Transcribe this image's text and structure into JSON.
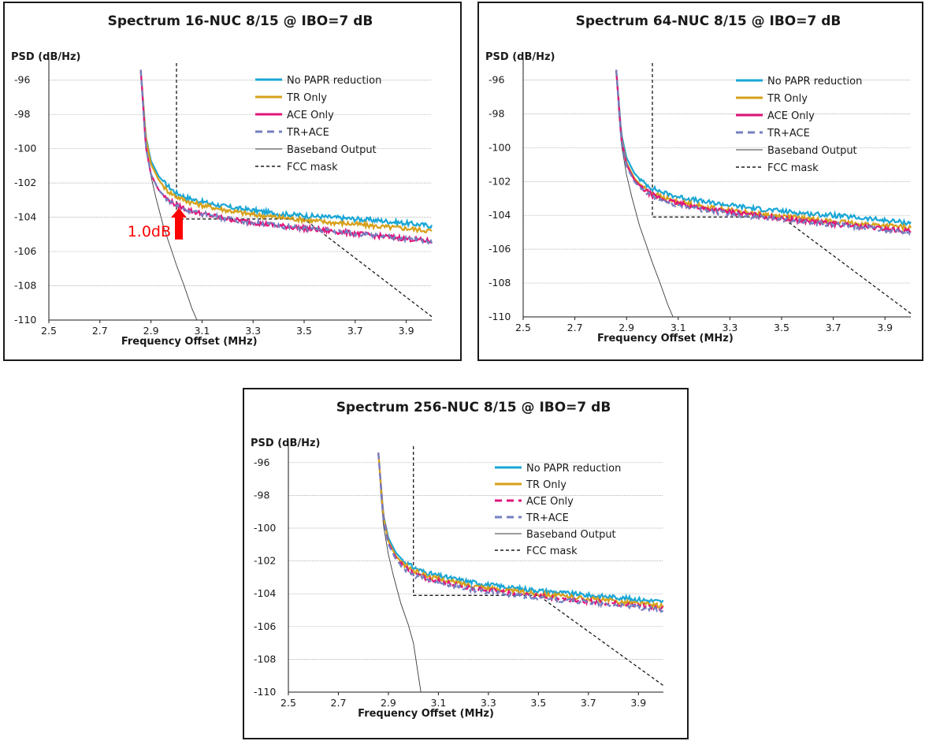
{
  "colors": {
    "no_papr": "#1aa7d6",
    "tr_only": "#d6a01a",
    "ace_only": "#e0147a",
    "tr_ace": "#7480c0",
    "baseband": "#3a3a3a",
    "fcc_mask": "#1a1a1a",
    "annotation": "#ff0000"
  },
  "chart_data": [
    {
      "type": "line",
      "title": "Spectrum 16-NUC 8/15 @ IBO=7 dB",
      "ylabel": "PSD (dB/Hz)",
      "xlabel": "Frequency Offset (MHz)",
      "xlim": [
        2.5,
        4.0
      ],
      "ylim": [
        -110,
        -95
      ],
      "xticks": [
        "2.5",
        "2.7",
        "2.9",
        "3.1",
        "3.3",
        "3.5",
        "3.7",
        "3.9"
      ],
      "yticks": [
        "-96",
        "-98",
        "-100",
        "-102",
        "-104",
        "-106",
        "-108",
        "-110"
      ],
      "grid": "horizontal",
      "legend_position": "top-right",
      "annotation": {
        "text": "1.0dB",
        "x": 3.0,
        "y_from": -104.1,
        "y_to": -103.1
      },
      "series": [
        {
          "name": "No PAPR reduction",
          "style": "solid",
          "color_key": "no_papr",
          "x": [
            2.86,
            2.88,
            2.9,
            2.93,
            2.96,
            3.0,
            3.05,
            3.1,
            3.2,
            3.3,
            3.4,
            3.5,
            3.6,
            3.7,
            3.8,
            3.9,
            4.0
          ],
          "y": [
            -95.4,
            -99.3,
            -100.7,
            -101.6,
            -102.1,
            -102.6,
            -102.9,
            -103.1,
            -103.4,
            -103.6,
            -103.8,
            -103.9,
            -104.0,
            -104.1,
            -104.2,
            -104.35,
            -104.5
          ]
        },
        {
          "name": "TR Only",
          "style": "solid",
          "color_key": "tr_only",
          "x": [
            2.86,
            2.88,
            2.9,
            2.93,
            2.96,
            3.0,
            3.05,
            3.1,
            3.2,
            3.3,
            3.4,
            3.5,
            3.6,
            3.7,
            3.8,
            3.9,
            4.0
          ],
          "y": [
            -95.4,
            -99.4,
            -100.9,
            -101.8,
            -102.4,
            -102.8,
            -103.1,
            -103.3,
            -103.6,
            -103.85,
            -104.0,
            -104.15,
            -104.3,
            -104.4,
            -104.55,
            -104.65,
            -104.8
          ]
        },
        {
          "name": "ACE Only",
          "style": "solid",
          "color_key": "ace_only",
          "x": [
            2.86,
            2.88,
            2.9,
            2.93,
            2.96,
            3.0,
            3.05,
            3.1,
            3.2,
            3.3,
            3.4,
            3.5,
            3.6,
            3.7,
            3.8,
            3.9,
            4.0
          ],
          "y": [
            -95.4,
            -99.9,
            -101.5,
            -102.4,
            -102.9,
            -103.3,
            -103.6,
            -103.8,
            -104.1,
            -104.3,
            -104.5,
            -104.65,
            -104.8,
            -104.95,
            -105.1,
            -105.25,
            -105.4
          ]
        },
        {
          "name": "TR+ACE",
          "style": "dashed",
          "color_key": "tr_ace",
          "x": [
            2.86,
            2.88,
            2.9,
            2.93,
            2.96,
            3.0,
            3.05,
            3.1,
            3.2,
            3.3,
            3.4,
            3.5,
            3.6,
            3.7,
            3.8,
            3.9,
            4.0
          ],
          "y": [
            -95.4,
            -99.9,
            -101.5,
            -102.4,
            -102.9,
            -103.3,
            -103.6,
            -103.8,
            -104.1,
            -104.3,
            -104.5,
            -104.65,
            -104.8,
            -104.95,
            -105.1,
            -105.25,
            -105.4
          ]
        },
        {
          "name": "Baseband Output",
          "style": "solid",
          "color_key": "baseband",
          "x": [
            2.86,
            2.87,
            2.88,
            2.9,
            2.92,
            2.95,
            2.98,
            3.0,
            3.03,
            3.06,
            3.08
          ],
          "y": [
            -95.4,
            -98.0,
            -99.8,
            -101.6,
            -102.9,
            -104.6,
            -105.9,
            -106.8,
            -108.0,
            -109.3,
            -110.0
          ]
        },
        {
          "name": "FCC mask",
          "style": "dashed",
          "color_key": "fcc_mask",
          "x": [
            3.0,
            3.0,
            3.5,
            4.0
          ],
          "y": [
            -95.0,
            -104.1,
            -104.1,
            -109.8
          ]
        }
      ]
    },
    {
      "type": "line",
      "title": "Spectrum 64-NUC 8/15 @ IBO=7 dB",
      "ylabel": "PSD (dB/Hz)",
      "xlabel": "Frequency Offset (MHz)",
      "xlim": [
        2.5,
        4.0
      ],
      "ylim": [
        -110,
        -95
      ],
      "xticks": [
        "2.5",
        "2.7",
        "2.9",
        "3.1",
        "3.3",
        "3.5",
        "3.7",
        "3.9"
      ],
      "yticks": [
        "-96",
        "-98",
        "-100",
        "-102",
        "-104",
        "-106",
        "-108",
        "-110"
      ],
      "grid": "horizontal",
      "legend_position": "top-right",
      "series": [
        {
          "name": "No PAPR reduction",
          "style": "solid",
          "color_key": "no_papr",
          "x": [
            2.86,
            2.88,
            2.9,
            2.93,
            2.96,
            3.0,
            3.05,
            3.1,
            3.2,
            3.3,
            3.4,
            3.5,
            3.6,
            3.7,
            3.8,
            3.9,
            4.0
          ],
          "y": [
            -95.4,
            -99.2,
            -100.6,
            -101.5,
            -102.0,
            -102.4,
            -102.7,
            -102.9,
            -103.2,
            -103.4,
            -103.6,
            -103.75,
            -103.9,
            -104.0,
            -104.15,
            -104.3,
            -104.45
          ]
        },
        {
          "name": "TR Only",
          "style": "solid",
          "color_key": "tr_only",
          "x": [
            2.86,
            2.88,
            2.9,
            2.93,
            2.96,
            3.0,
            3.05,
            3.1,
            3.2,
            3.3,
            3.4,
            3.5,
            3.6,
            3.7,
            3.8,
            3.9,
            4.0
          ],
          "y": [
            -95.4,
            -99.4,
            -100.9,
            -101.8,
            -102.3,
            -102.7,
            -103.0,
            -103.2,
            -103.5,
            -103.7,
            -103.9,
            -104.05,
            -104.2,
            -104.35,
            -104.5,
            -104.6,
            -104.75
          ]
        },
        {
          "name": "ACE Only",
          "style": "solid",
          "color_key": "ace_only",
          "x": [
            2.86,
            2.88,
            2.9,
            2.93,
            2.96,
            3.0,
            3.05,
            3.1,
            3.2,
            3.3,
            3.4,
            3.5,
            3.6,
            3.7,
            3.8,
            3.9,
            4.0
          ],
          "y": [
            -95.4,
            -99.5,
            -101.0,
            -101.9,
            -102.4,
            -102.8,
            -103.1,
            -103.3,
            -103.6,
            -103.8,
            -104.0,
            -104.2,
            -104.35,
            -104.5,
            -104.65,
            -104.8,
            -104.95
          ]
        },
        {
          "name": "TR+ACE",
          "style": "dashed",
          "color_key": "tr_ace",
          "x": [
            2.86,
            2.88,
            2.9,
            2.93,
            2.96,
            3.0,
            3.05,
            3.1,
            3.2,
            3.3,
            3.4,
            3.5,
            3.6,
            3.7,
            3.8,
            3.9,
            4.0
          ],
          "y": [
            -95.4,
            -99.6,
            -101.1,
            -102.0,
            -102.5,
            -102.9,
            -103.2,
            -103.4,
            -103.7,
            -103.9,
            -104.1,
            -104.25,
            -104.4,
            -104.55,
            -104.7,
            -104.85,
            -105.0
          ]
        },
        {
          "name": "Baseband Output",
          "style": "solid",
          "color_key": "baseband",
          "x": [
            2.86,
            2.87,
            2.88,
            2.9,
            2.92,
            2.95,
            2.98,
            3.0,
            3.03,
            3.06,
            3.08
          ],
          "y": [
            -95.4,
            -98.0,
            -99.8,
            -101.6,
            -102.9,
            -104.6,
            -105.9,
            -106.8,
            -108.0,
            -109.3,
            -110.0
          ]
        },
        {
          "name": "FCC mask",
          "style": "dashed",
          "color_key": "fcc_mask",
          "x": [
            3.0,
            3.0,
            3.5,
            4.0
          ],
          "y": [
            -95.0,
            -104.1,
            -104.1,
            -109.8
          ]
        }
      ]
    },
    {
      "type": "line",
      "title": "Spectrum 256-NUC 8/15 @ IBO=7 dB",
      "ylabel": "PSD (dB/Hz)",
      "xlabel": "Frequency Offset (MHz)",
      "xlim": [
        2.5,
        4.0
      ],
      "ylim": [
        -110,
        -95
      ],
      "xticks": [
        "2.5",
        "2.7",
        "2.9",
        "3.1",
        "3.3",
        "3.5",
        "3.7",
        "3.9"
      ],
      "yticks": [
        "-96",
        "-98",
        "-100",
        "-102",
        "-104",
        "-106",
        "-108",
        "-110"
      ],
      "grid": "horizontal",
      "legend_position": "top-right",
      "series": [
        {
          "name": "No PAPR reduction",
          "style": "solid",
          "color_key": "no_papr",
          "x": [
            2.86,
            2.88,
            2.9,
            2.93,
            2.96,
            3.0,
            3.05,
            3.1,
            3.2,
            3.3,
            3.4,
            3.5,
            3.6,
            3.7,
            3.8,
            3.9,
            4.0
          ],
          "y": [
            -95.4,
            -99.2,
            -100.6,
            -101.5,
            -102.0,
            -102.4,
            -102.7,
            -102.9,
            -103.2,
            -103.45,
            -103.65,
            -103.8,
            -103.95,
            -104.1,
            -104.2,
            -104.35,
            -104.5
          ]
        },
        {
          "name": "TR Only",
          "style": "solid",
          "color_key": "tr_only",
          "x": [
            2.86,
            2.88,
            2.9,
            2.93,
            2.96,
            3.0,
            3.05,
            3.1,
            3.2,
            3.3,
            3.4,
            3.5,
            3.6,
            3.7,
            3.8,
            3.9,
            4.0
          ],
          "y": [
            -95.4,
            -99.3,
            -100.8,
            -101.7,
            -102.2,
            -102.6,
            -102.9,
            -103.1,
            -103.4,
            -103.65,
            -103.85,
            -104.0,
            -104.15,
            -104.3,
            -104.45,
            -104.6,
            -104.75
          ]
        },
        {
          "name": "ACE Only",
          "style": "dashed",
          "color_key": "ace_only",
          "x": [
            2.86,
            2.88,
            2.9,
            2.93,
            2.96,
            3.0,
            3.05,
            3.1,
            3.2,
            3.3,
            3.4,
            3.5,
            3.6,
            3.7,
            3.8,
            3.9,
            4.0
          ],
          "y": [
            -95.4,
            -99.4,
            -100.9,
            -101.8,
            -102.35,
            -102.75,
            -103.05,
            -103.25,
            -103.55,
            -103.8,
            -104.0,
            -104.15,
            -104.3,
            -104.45,
            -104.6,
            -104.75,
            -104.9
          ]
        },
        {
          "name": "TR+ACE",
          "style": "dashed",
          "color_key": "tr_ace",
          "x": [
            2.86,
            2.88,
            2.9,
            2.93,
            2.96,
            3.0,
            3.05,
            3.1,
            3.2,
            3.3,
            3.4,
            3.5,
            3.6,
            3.7,
            3.8,
            3.9,
            4.0
          ],
          "y": [
            -95.4,
            -99.5,
            -101.0,
            -101.9,
            -102.45,
            -102.85,
            -103.15,
            -103.35,
            -103.65,
            -103.9,
            -104.1,
            -104.25,
            -104.4,
            -104.55,
            -104.7,
            -104.85,
            -105.0
          ]
        },
        {
          "name": "Baseband Output",
          "style": "solid",
          "color_key": "baseband",
          "x": [
            2.86,
            2.87,
            2.88,
            2.9,
            2.92,
            2.95,
            2.98,
            3.0,
            3.03
          ],
          "y": [
            -95.4,
            -98.0,
            -99.8,
            -101.6,
            -102.9,
            -104.6,
            -105.9,
            -107.0,
            -110.0
          ]
        },
        {
          "name": "FCC mask",
          "style": "dashed",
          "color_key": "fcc_mask",
          "x": [
            3.0,
            3.0,
            3.5,
            4.0
          ],
          "y": [
            -95.0,
            -104.1,
            -104.1,
            -109.6
          ]
        }
      ]
    }
  ]
}
